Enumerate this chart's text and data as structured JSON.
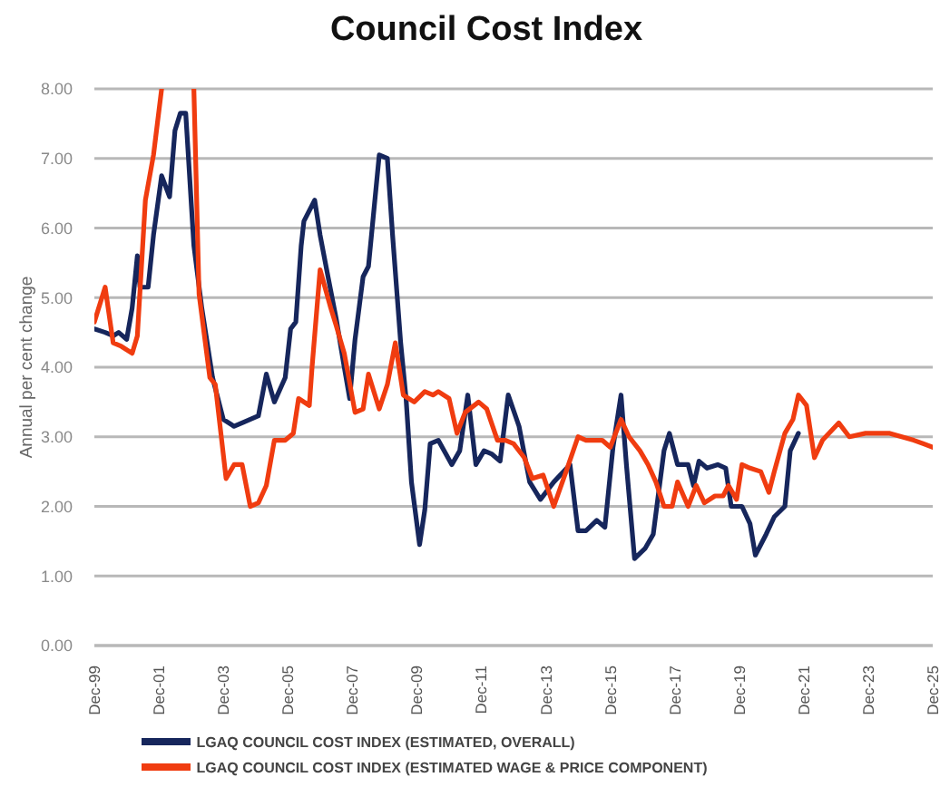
{
  "chart_data": {
    "type": "line",
    "title": "Council Cost Index",
    "ylabel": "Annual per cent change",
    "xlim": [
      "1999-12",
      "2025-12"
    ],
    "xticks": [
      {
        "value": "1999-12",
        "label": "Dec-99"
      },
      {
        "value": "2001-12",
        "label": "Dec-01"
      },
      {
        "value": "2003-12",
        "label": "Dec-03"
      },
      {
        "value": "2005-12",
        "label": "Dec-05"
      },
      {
        "value": "2007-12",
        "label": "Dec-07"
      },
      {
        "value": "2009-12",
        "label": "Dec-09"
      },
      {
        "value": "2011-12",
        "label": "Dec-11"
      },
      {
        "value": "2013-12",
        "label": "Dec-13"
      },
      {
        "value": "2015-12",
        "label": "Dec-15"
      },
      {
        "value": "2017-12",
        "label": "Dec-17"
      },
      {
        "value": "2019-12",
        "label": "Dec-19"
      },
      {
        "value": "2021-12",
        "label": "Dec-21"
      },
      {
        "value": "2023-12",
        "label": "Dec-23"
      },
      {
        "value": "2025-12",
        "label": "Dec-25"
      }
    ],
    "ylim": [
      0,
      8
    ],
    "yticks": [
      {
        "value": 0,
        "label": "0.00"
      },
      {
        "value": 1,
        "label": "1.00"
      },
      {
        "value": 2,
        "label": "2.00"
      },
      {
        "value": 3,
        "label": "3.00"
      },
      {
        "value": 4,
        "label": "4.00"
      },
      {
        "value": 5,
        "label": "5.00"
      },
      {
        "value": 6,
        "label": "6.00"
      },
      {
        "value": 7,
        "label": "7.00"
      },
      {
        "value": 8,
        "label": "8.00"
      }
    ],
    "grid": "y",
    "legend": "bottom",
    "series": [
      {
        "name": "LGAQ COUNCIL COST INDEX (ESTIMATED, OVERALL)",
        "color": "#16265c",
        "x": [
          "1999-12",
          "2000-04",
          "2000-07",
          "2000-09",
          "2000-12",
          "2001-02",
          "2001-04",
          "2001-05",
          "2001-08",
          "2001-10",
          "2002-01",
          "2002-04",
          "2002-06",
          "2002-08",
          "2002-10",
          "2003-01",
          "2003-04",
          "2003-08",
          "2003-12",
          "2004-04",
          "2004-07",
          "2005-01",
          "2005-04",
          "2005-07",
          "2005-11",
          "2006-01",
          "2006-03",
          "2006-05",
          "2006-06",
          "2006-10",
          "2006-12",
          "2007-03",
          "2007-06",
          "2007-09",
          "2007-11",
          "2008-01",
          "2008-04",
          "2008-06",
          "2008-10",
          "2009-01",
          "2009-03",
          "2009-06",
          "2009-08",
          "2009-10",
          "2010-01",
          "2010-03",
          "2010-05",
          "2010-08",
          "2011-01",
          "2011-04",
          "2011-07",
          "2011-10",
          "2012-01",
          "2012-04",
          "2012-07",
          "2012-10",
          "2013-02",
          "2013-06",
          "2013-10",
          "2014-03",
          "2014-09",
          "2014-12",
          "2015-03",
          "2015-07",
          "2015-10",
          "2016-01",
          "2016-04",
          "2016-06",
          "2016-09",
          "2017-01",
          "2017-04",
          "2017-08",
          "2017-10",
          "2018-01",
          "2018-05",
          "2018-07",
          "2018-09",
          "2018-12",
          "2019-04",
          "2019-07",
          "2019-09",
          "2020-01",
          "2020-04",
          "2020-06",
          "2020-10",
          "2021-01",
          "2021-05",
          "2021-07",
          "2021-10"
        ],
        "values": [
          4.55,
          4.5,
          4.45,
          4.5,
          4.4,
          4.85,
          5.6,
          5.15,
          5.15,
          5.9,
          6.75,
          6.45,
          7.4,
          7.65,
          7.65,
          5.75,
          4.85,
          3.85,
          3.25,
          3.15,
          3.2,
          3.3,
          3.9,
          3.5,
          3.85,
          4.55,
          4.65,
          5.75,
          6.1,
          6.4,
          5.9,
          5.3,
          4.7,
          4.0,
          3.55,
          4.4,
          5.3,
          5.45,
          7.05,
          7.0,
          5.9,
          4.35,
          3.55,
          2.35,
          1.45,
          1.95,
          2.9,
          2.95,
          2.6,
          2.8,
          3.6,
          2.6,
          2.8,
          2.75,
          2.65,
          3.6,
          3.15,
          2.35,
          2.1,
          2.35,
          2.6,
          1.65,
          1.65,
          1.8,
          1.7,
          2.85,
          3.6,
          2.6,
          1.25,
          1.4,
          1.6,
          2.8,
          3.05,
          2.6,
          2.6,
          2.3,
          2.65,
          2.55,
          2.6,
          2.55,
          2.0,
          2.0,
          1.75,
          1.3,
          1.6,
          1.85,
          2.0,
          2.8,
          3.05
        ]
      },
      {
        "name": "LGAQ COUNCIL COST INDEX (ESTIMATED WAGE & PRICE COMPONENT)",
        "color": "#f03c10",
        "x": [
          "1999-12",
          "2000-04",
          "2000-07",
          "2000-10",
          "2001-02",
          "2001-04",
          "2001-07",
          "2001-10",
          "2002-01",
          "2002-07",
          "2003-01",
          "2003-03",
          "2003-07",
          "2003-09",
          "2004-01",
          "2004-04",
          "2004-07",
          "2004-10",
          "2005-01",
          "2005-04",
          "2005-07",
          "2005-11",
          "2006-02",
          "2006-04",
          "2006-08",
          "2006-09",
          "2006-12",
          "2007-04",
          "2007-06",
          "2007-09",
          "2008-01",
          "2008-04",
          "2008-06",
          "2008-10",
          "2009-01",
          "2009-04",
          "2009-07",
          "2009-11",
          "2010-03",
          "2010-06",
          "2010-08",
          "2010-12",
          "2011-03",
          "2011-06",
          "2011-11",
          "2012-02",
          "2012-06",
          "2012-09",
          "2012-12",
          "2013-04",
          "2013-07",
          "2013-11",
          "2014-03",
          "2014-08",
          "2014-12",
          "2015-03",
          "2015-09",
          "2015-12",
          "2016-04",
          "2016-07",
          "2016-11",
          "2017-02",
          "2017-05",
          "2017-08",
          "2017-11",
          "2018-01",
          "2018-05",
          "2018-08",
          "2018-11",
          "2019-03",
          "2019-06",
          "2019-08",
          "2019-11",
          "2020-01",
          "2020-04",
          "2020-08",
          "2020-11",
          "2021-01",
          "2021-05",
          "2021-08",
          "2021-10",
          "2022-01",
          "2022-04",
          "2022-07",
          "2023-01",
          "2023-05",
          "2023-11",
          "2024-08",
          "2025-05",
          "2025-12"
        ],
        "values": [
          4.65,
          5.15,
          4.35,
          4.3,
          4.2,
          4.45,
          6.4,
          7.05,
          8.0,
          null,
          8.0,
          5.05,
          3.85,
          3.75,
          2.4,
          2.6,
          2.6,
          2.0,
          2.05,
          2.3,
          2.95,
          2.95,
          3.05,
          3.55,
          3.45,
          4.0,
          5.4,
          4.85,
          4.6,
          4.2,
          3.35,
          3.4,
          3.9,
          3.4,
          3.75,
          4.35,
          3.6,
          3.5,
          3.65,
          3.6,
          3.65,
          3.55,
          3.05,
          3.35,
          3.5,
          3.4,
          2.95,
          2.95,
          2.9,
          2.7,
          2.4,
          2.45,
          2.0,
          2.55,
          3.0,
          2.95,
          2.95,
          2.85,
          3.25,
          3.0,
          2.8,
          2.6,
          2.35,
          2.0,
          2.0,
          2.35,
          2.0,
          2.3,
          2.05,
          2.15,
          2.15,
          2.3,
          2.1,
          2.6,
          2.55,
          2.5,
          2.2,
          2.5,
          3.05,
          3.25,
          3.6,
          3.45,
          2.7,
          2.95,
          3.2,
          3.0,
          3.05,
          3.05,
          2.95,
          2.85
        ]
      }
    ]
  }
}
